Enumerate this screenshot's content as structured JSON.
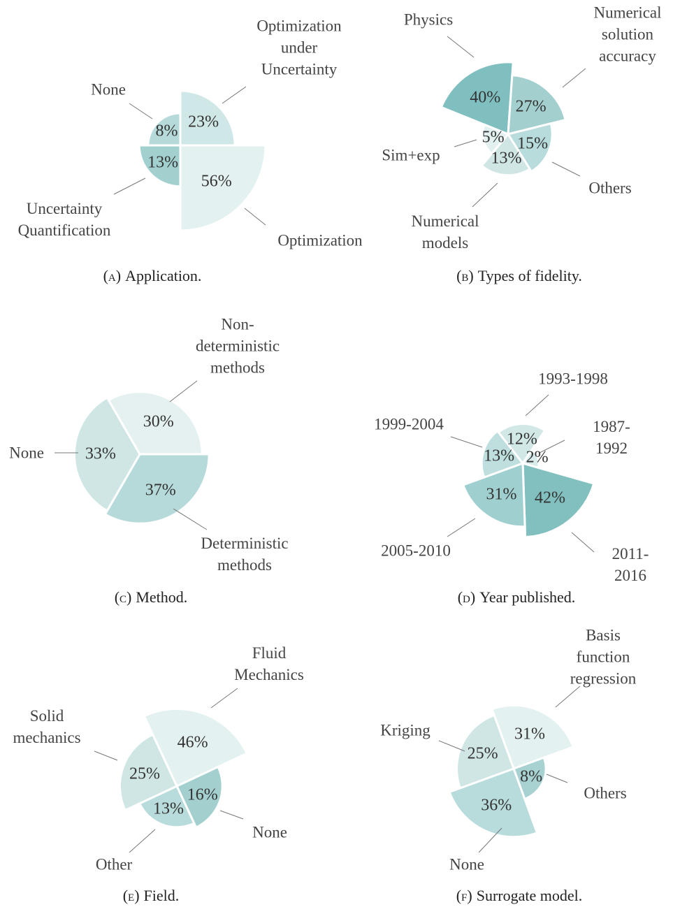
{
  "chart_data": [
    {
      "type": "rose",
      "label": "(a)",
      "title": "Application.",
      "categories": [
        "Optimization\nunder\nUncertainty",
        "Optimization",
        "Uncertainty\nQuantification",
        "None"
      ],
      "values": [
        23,
        56,
        13,
        8
      ],
      "value_labels": [
        "23%",
        "56%",
        "13%",
        "8%"
      ],
      "colors": [
        "#cfe7e6",
        "#e4f1f1",
        "#a1d0cf",
        "#b5dad9"
      ]
    },
    {
      "type": "rose",
      "label": "(b)",
      "title": "Types of fidelity.",
      "categories": [
        "Physics",
        "Numerical\nsolution\naccuracy",
        "Others",
        "Numerical\nmodels",
        "Sim+exp"
      ],
      "values": [
        40,
        27,
        15,
        13,
        5
      ],
      "value_labels": [
        "40%",
        "27%",
        "15%",
        "13%",
        "5%"
      ],
      "colors": [
        "#7fbfbf",
        "#a3d0cf",
        "#b8dcdb",
        "#cfe6e5",
        "#e3f0f0"
      ]
    },
    {
      "type": "rose",
      "label": "(c)",
      "title": "Method.",
      "categories": [
        "Non-\ndeterministic\nmethods",
        "Deterministic\nmethods",
        "None"
      ],
      "values": [
        30,
        37,
        33
      ],
      "value_labels": [
        "30%",
        "37%",
        "33%"
      ],
      "colors": [
        "#e5f1f1",
        "#b5dad9",
        "#cfe6e5"
      ]
    },
    {
      "type": "rose",
      "label": "(d)",
      "title": "Year published.",
      "categories": [
        "1987-1992",
        "2011-2016",
        "2005-2010",
        "1999-2004",
        "1993-1998"
      ],
      "values": [
        2,
        42,
        31,
        13,
        12
      ],
      "value_labels": [
        "2%",
        "42%",
        "31%",
        "13%",
        "12%"
      ],
      "colors": [
        "#d8ecec",
        "#82c0c0",
        "#9fcfcf",
        "#bedfde",
        "#d1e8e7"
      ]
    },
    {
      "type": "rose",
      "label": "(e)",
      "title": "Field.",
      "categories": [
        "Fluid\nMechanics",
        "None",
        "Other",
        "Solid\nmechanics"
      ],
      "values": [
        46,
        16,
        13,
        25
      ],
      "value_labels": [
        "46%",
        "16%",
        "13%",
        "25%"
      ],
      "colors": [
        "#e4f1f1",
        "#a3d0cf",
        "#b8dcdb",
        "#cfe6e5"
      ]
    },
    {
      "type": "rose",
      "label": "(f)",
      "title": "Surrogate model.",
      "categories": [
        "Basis function\nregression",
        "Others",
        "None",
        "Kriging"
      ],
      "values": [
        31,
        8,
        36,
        25
      ],
      "value_labels": [
        "31%",
        "8%",
        "36%",
        "25%"
      ],
      "colors": [
        "#e4f1f1",
        "#a7d2d1",
        "#b8dcdb",
        "#cfe6e5"
      ]
    }
  ]
}
